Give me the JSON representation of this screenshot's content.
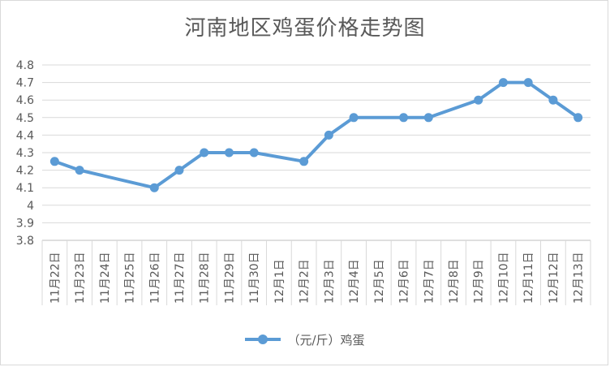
{
  "chart_data": {
    "type": "line",
    "title": "河南地区鸡蛋价格走势图",
    "categories": [
      "11月22日",
      "11月23日",
      "11月24日",
      "11月25日",
      "11月26日",
      "11月27日",
      "11月28日",
      "11月29日",
      "11月30日",
      "12月1日",
      "12月2日",
      "12月3日",
      "12月4日",
      "12月5日",
      "12月6日",
      "12月7日",
      "12月8日",
      "12月9日",
      "12月10日",
      "12月11日",
      "12月12日",
      "12月13日"
    ],
    "series": [
      {
        "name": "（元/斤）鸡蛋",
        "values": [
          4.25,
          4.2,
          null,
          null,
          4.1,
          4.2,
          4.3,
          4.3,
          4.3,
          null,
          4.25,
          4.4,
          4.5,
          null,
          4.5,
          4.5,
          null,
          4.6,
          4.7,
          4.7,
          4.6,
          4.5
        ],
        "color": "#5b9bd5"
      }
    ],
    "ylim": [
      3.8,
      4.8
    ],
    "yticks": [
      "3.8",
      "3.9",
      "4",
      "4.1",
      "4.2",
      "4.3",
      "4.4",
      "4.5",
      "4.6",
      "4.7",
      "4.8"
    ],
    "grid": true,
    "legend_position": "bottom"
  }
}
